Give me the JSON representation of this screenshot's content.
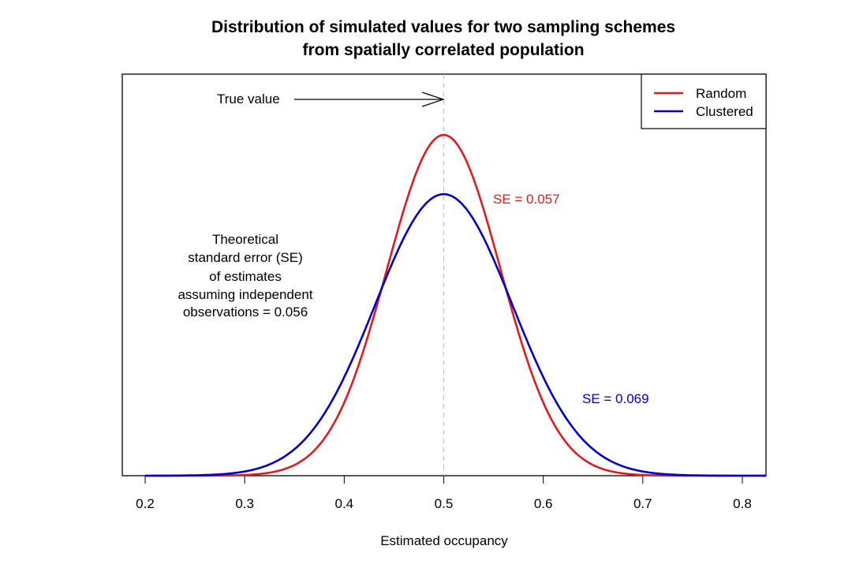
{
  "chart_data": {
    "type": "line",
    "title": [
      "Distribution of simulated values for two sampling schemes",
      "from spatially correlated population"
    ],
    "xlabel": "Estimated occupancy",
    "ylabel": "",
    "xlim": [
      0.18,
      0.825
    ],
    "xticks": [
      "0.2",
      "0.3",
      "0.4",
      "0.5",
      "0.6",
      "0.7",
      "0.8"
    ],
    "tick_values": [
      0.2,
      0.3,
      0.4,
      0.5,
      0.6,
      0.7,
      0.8
    ],
    "series": [
      {
        "name": "Random",
        "color": "#e31a1c",
        "distribution": "normal",
        "mean": 0.5,
        "sd": 0.057,
        "x_range": [
          0.2,
          0.825
        ]
      },
      {
        "name": "Clustered",
        "color": "#0000cc",
        "distribution": "normal",
        "mean": 0.5,
        "sd": 0.069,
        "x_range": [
          0.2,
          0.825
        ]
      }
    ],
    "true_value": 0.5,
    "legend": {
      "position": "top-right",
      "entries": [
        "Random",
        "Clustered"
      ]
    },
    "annotations": {
      "true_value_label": "True value",
      "se_random": "SE = 0.057",
      "se_clustered": "SE = 0.069",
      "theoretical": [
        "Theoretical",
        "standard error (SE)",
        "of estimates",
        "assuming independent",
        "observations = 0.056"
      ]
    }
  }
}
